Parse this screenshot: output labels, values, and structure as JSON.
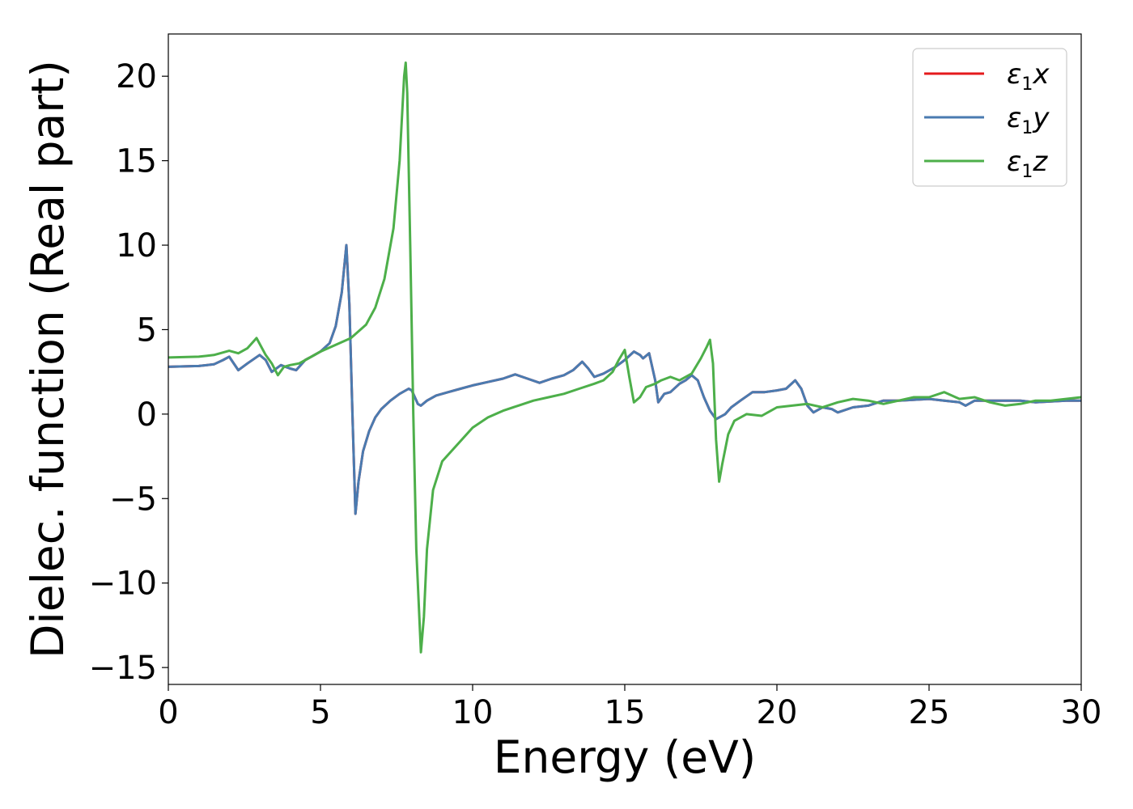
{
  "chart_data": {
    "type": "line",
    "title": "",
    "xlabel": "Energy (eV)",
    "ylabel": "Dielec. function (Real part)",
    "xlim": [
      0,
      30
    ],
    "ylim": [
      -16,
      22.5
    ],
    "xticks": [
      0,
      5,
      10,
      15,
      20,
      25,
      30
    ],
    "xtick_labels": [
      "0",
      "5",
      "10",
      "15",
      "20",
      "25",
      "30"
    ],
    "yticks": [
      -15,
      -10,
      -5,
      0,
      5,
      10,
      15,
      20
    ],
    "ytick_labels": [
      "−15",
      "−10",
      "−5",
      "0",
      "5",
      "10",
      "15",
      "20"
    ],
    "grid": false,
    "legend_position": "top-right",
    "series": [
      {
        "name": "ε₁x",
        "legend_symbol": "ε",
        "legend_sub": "1",
        "legend_suffix": "x",
        "color": "#e41a1c",
        "points": [
          [
            0,
            2.8
          ],
          [
            1,
            2.85
          ],
          [
            1.5,
            2.95
          ],
          [
            1.8,
            3.2
          ],
          [
            2.0,
            3.4
          ],
          [
            2.3,
            2.6
          ],
          [
            2.6,
            3.0
          ],
          [
            3.0,
            3.5
          ],
          [
            3.2,
            3.2
          ],
          [
            3.4,
            2.5
          ],
          [
            3.7,
            2.9
          ],
          [
            4.0,
            2.7
          ],
          [
            4.2,
            2.6
          ],
          [
            4.5,
            3.2
          ],
          [
            4.8,
            3.5
          ],
          [
            5.0,
            3.7
          ],
          [
            5.3,
            4.2
          ],
          [
            5.5,
            5.2
          ],
          [
            5.7,
            7.2
          ],
          [
            5.85,
            10.0
          ],
          [
            5.95,
            6.5
          ],
          [
            6.05,
            0.0
          ],
          [
            6.15,
            -5.9
          ],
          [
            6.25,
            -4.0
          ],
          [
            6.4,
            -2.2
          ],
          [
            6.6,
            -1.0
          ],
          [
            6.8,
            -0.2
          ],
          [
            7.0,
            0.3
          ],
          [
            7.3,
            0.8
          ],
          [
            7.6,
            1.2
          ],
          [
            7.9,
            1.5
          ],
          [
            8.0,
            1.4
          ],
          [
            8.2,
            0.6
          ],
          [
            8.3,
            0.5
          ],
          [
            8.5,
            0.8
          ],
          [
            8.8,
            1.1
          ],
          [
            9.2,
            1.3
          ],
          [
            9.6,
            1.5
          ],
          [
            10.0,
            1.7
          ],
          [
            10.5,
            1.9
          ],
          [
            11.0,
            2.1
          ],
          [
            11.4,
            2.35
          ],
          [
            11.8,
            2.1
          ],
          [
            12.2,
            1.85
          ],
          [
            12.6,
            2.1
          ],
          [
            13.0,
            2.3
          ],
          [
            13.3,
            2.6
          ],
          [
            13.6,
            3.1
          ],
          [
            13.8,
            2.7
          ],
          [
            14.0,
            2.2
          ],
          [
            14.3,
            2.4
          ],
          [
            14.7,
            2.8
          ],
          [
            15.0,
            3.2
          ],
          [
            15.3,
            3.7
          ],
          [
            15.5,
            3.5
          ],
          [
            15.6,
            3.3
          ],
          [
            15.8,
            3.6
          ],
          [
            16.0,
            2.0
          ],
          [
            16.1,
            0.7
          ],
          [
            16.3,
            1.2
          ],
          [
            16.5,
            1.3
          ],
          [
            16.8,
            1.8
          ],
          [
            17.0,
            2.0
          ],
          [
            17.2,
            2.3
          ],
          [
            17.4,
            2.0
          ],
          [
            17.6,
            1.0
          ],
          [
            17.8,
            0.2
          ],
          [
            18.0,
            -0.3
          ],
          [
            18.3,
            0.0
          ],
          [
            18.5,
            0.4
          ],
          [
            18.8,
            0.8
          ],
          [
            19.2,
            1.3
          ],
          [
            19.6,
            1.3
          ],
          [
            20.0,
            1.4
          ],
          [
            20.3,
            1.5
          ],
          [
            20.6,
            2.0
          ],
          [
            20.8,
            1.5
          ],
          [
            21.0,
            0.5
          ],
          [
            21.2,
            0.1
          ],
          [
            21.5,
            0.4
          ],
          [
            21.8,
            0.3
          ],
          [
            22.0,
            0.1
          ],
          [
            22.5,
            0.4
          ],
          [
            23.0,
            0.5
          ],
          [
            23.5,
            0.8
          ],
          [
            24.0,
            0.8
          ],
          [
            25.0,
            0.9
          ],
          [
            25.5,
            0.8
          ],
          [
            26.0,
            0.7
          ],
          [
            26.2,
            0.5
          ],
          [
            26.5,
            0.8
          ],
          [
            27.0,
            0.8
          ],
          [
            28.0,
            0.8
          ],
          [
            28.5,
            0.7
          ],
          [
            29.0,
            0.75
          ],
          [
            29.5,
            0.8
          ],
          [
            30,
            0.8
          ]
        ]
      },
      {
        "name": "ε₁y",
        "legend_symbol": "ε",
        "legend_sub": "1",
        "legend_suffix": "y",
        "color": "#4a7bb0",
        "points": [
          [
            0,
            2.8
          ],
          [
            1,
            2.85
          ],
          [
            1.5,
            2.95
          ],
          [
            1.8,
            3.2
          ],
          [
            2.0,
            3.4
          ],
          [
            2.3,
            2.6
          ],
          [
            2.6,
            3.0
          ],
          [
            3.0,
            3.5
          ],
          [
            3.2,
            3.2
          ],
          [
            3.4,
            2.5
          ],
          [
            3.7,
            2.9
          ],
          [
            4.0,
            2.7
          ],
          [
            4.2,
            2.6
          ],
          [
            4.5,
            3.2
          ],
          [
            4.8,
            3.5
          ],
          [
            5.0,
            3.7
          ],
          [
            5.3,
            4.2
          ],
          [
            5.5,
            5.2
          ],
          [
            5.7,
            7.2
          ],
          [
            5.85,
            10.0
          ],
          [
            5.95,
            6.5
          ],
          [
            6.05,
            0.0
          ],
          [
            6.15,
            -5.9
          ],
          [
            6.25,
            -4.0
          ],
          [
            6.4,
            -2.2
          ],
          [
            6.6,
            -1.0
          ],
          [
            6.8,
            -0.2
          ],
          [
            7.0,
            0.3
          ],
          [
            7.3,
            0.8
          ],
          [
            7.6,
            1.2
          ],
          [
            7.9,
            1.5
          ],
          [
            8.0,
            1.4
          ],
          [
            8.2,
            0.6
          ],
          [
            8.3,
            0.5
          ],
          [
            8.5,
            0.8
          ],
          [
            8.8,
            1.1
          ],
          [
            9.2,
            1.3
          ],
          [
            9.6,
            1.5
          ],
          [
            10.0,
            1.7
          ],
          [
            10.5,
            1.9
          ],
          [
            11.0,
            2.1
          ],
          [
            11.4,
            2.35
          ],
          [
            11.8,
            2.1
          ],
          [
            12.2,
            1.85
          ],
          [
            12.6,
            2.1
          ],
          [
            13.0,
            2.3
          ],
          [
            13.3,
            2.6
          ],
          [
            13.6,
            3.1
          ],
          [
            13.8,
            2.7
          ],
          [
            14.0,
            2.2
          ],
          [
            14.3,
            2.4
          ],
          [
            14.7,
            2.8
          ],
          [
            15.0,
            3.2
          ],
          [
            15.3,
            3.7
          ],
          [
            15.5,
            3.5
          ],
          [
            15.6,
            3.3
          ],
          [
            15.8,
            3.6
          ],
          [
            16.0,
            2.0
          ],
          [
            16.1,
            0.7
          ],
          [
            16.3,
            1.2
          ],
          [
            16.5,
            1.3
          ],
          [
            16.8,
            1.8
          ],
          [
            17.0,
            2.0
          ],
          [
            17.2,
            2.3
          ],
          [
            17.4,
            2.0
          ],
          [
            17.6,
            1.0
          ],
          [
            17.8,
            0.2
          ],
          [
            18.0,
            -0.3
          ],
          [
            18.3,
            0.0
          ],
          [
            18.5,
            0.4
          ],
          [
            18.8,
            0.8
          ],
          [
            19.2,
            1.3
          ],
          [
            19.6,
            1.3
          ],
          [
            20.0,
            1.4
          ],
          [
            20.3,
            1.5
          ],
          [
            20.6,
            2.0
          ],
          [
            20.8,
            1.5
          ],
          [
            21.0,
            0.5
          ],
          [
            21.2,
            0.1
          ],
          [
            21.5,
            0.4
          ],
          [
            21.8,
            0.3
          ],
          [
            22.0,
            0.1
          ],
          [
            22.5,
            0.4
          ],
          [
            23.0,
            0.5
          ],
          [
            23.5,
            0.8
          ],
          [
            24.0,
            0.8
          ],
          [
            25.0,
            0.9
          ],
          [
            25.5,
            0.8
          ],
          [
            26.0,
            0.7
          ],
          [
            26.2,
            0.5
          ],
          [
            26.5,
            0.8
          ],
          [
            27.0,
            0.8
          ],
          [
            28.0,
            0.8
          ],
          [
            28.5,
            0.7
          ],
          [
            29.0,
            0.75
          ],
          [
            29.5,
            0.8
          ],
          [
            30,
            0.8
          ]
        ]
      },
      {
        "name": "ε₁z",
        "legend_symbol": "ε",
        "legend_sub": "1",
        "legend_suffix": "z",
        "color": "#4daf4a",
        "points": [
          [
            0,
            3.35
          ],
          [
            1,
            3.4
          ],
          [
            1.5,
            3.5
          ],
          [
            2.0,
            3.75
          ],
          [
            2.3,
            3.6
          ],
          [
            2.6,
            3.9
          ],
          [
            2.9,
            4.5
          ],
          [
            3.2,
            3.5
          ],
          [
            3.4,
            3.0
          ],
          [
            3.6,
            2.3
          ],
          [
            3.8,
            2.8
          ],
          [
            4.0,
            2.9
          ],
          [
            4.3,
            3.0
          ],
          [
            4.6,
            3.3
          ],
          [
            5.0,
            3.7
          ],
          [
            5.5,
            4.1
          ],
          [
            6.0,
            4.5
          ],
          [
            6.5,
            5.3
          ],
          [
            6.8,
            6.3
          ],
          [
            7.1,
            8.0
          ],
          [
            7.4,
            11.0
          ],
          [
            7.6,
            15.0
          ],
          [
            7.75,
            20.0
          ],
          [
            7.8,
            20.8
          ],
          [
            7.85,
            19.0
          ],
          [
            7.95,
            10.0
          ],
          [
            8.05,
            0.0
          ],
          [
            8.15,
            -8.0
          ],
          [
            8.3,
            -14.1
          ],
          [
            8.4,
            -12.0
          ],
          [
            8.5,
            -8.0
          ],
          [
            8.7,
            -4.5
          ],
          [
            9.0,
            -2.8
          ],
          [
            9.3,
            -2.2
          ],
          [
            9.6,
            -1.6
          ],
          [
            10.0,
            -0.8
          ],
          [
            10.5,
            -0.2
          ],
          [
            11.0,
            0.2
          ],
          [
            11.5,
            0.5
          ],
          [
            12.0,
            0.8
          ],
          [
            12.5,
            1.0
          ],
          [
            13.0,
            1.2
          ],
          [
            13.5,
            1.5
          ],
          [
            14.0,
            1.8
          ],
          [
            14.3,
            2.0
          ],
          [
            14.6,
            2.5
          ],
          [
            14.8,
            3.2
          ],
          [
            15.0,
            3.8
          ],
          [
            15.15,
            2.2
          ],
          [
            15.3,
            0.7
          ],
          [
            15.5,
            1.0
          ],
          [
            15.7,
            1.6
          ],
          [
            16.0,
            1.8
          ],
          [
            16.2,
            2.0
          ],
          [
            16.5,
            2.2
          ],
          [
            16.8,
            2.0
          ],
          [
            17.2,
            2.4
          ],
          [
            17.5,
            3.3
          ],
          [
            17.7,
            4.0
          ],
          [
            17.8,
            4.4
          ],
          [
            17.9,
            3.0
          ],
          [
            18.0,
            -1.5
          ],
          [
            18.1,
            -4.0
          ],
          [
            18.2,
            -3.0
          ],
          [
            18.4,
            -1.2
          ],
          [
            18.6,
            -0.4
          ],
          [
            19.0,
            0.0
          ],
          [
            19.5,
            -0.1
          ],
          [
            20.0,
            0.4
          ],
          [
            20.5,
            0.5
          ],
          [
            21.0,
            0.6
          ],
          [
            21.5,
            0.4
          ],
          [
            22.0,
            0.7
          ],
          [
            22.5,
            0.9
          ],
          [
            23.0,
            0.8
          ],
          [
            23.5,
            0.6
          ],
          [
            24.0,
            0.8
          ],
          [
            24.5,
            1.0
          ],
          [
            25.0,
            1.0
          ],
          [
            25.5,
            1.3
          ],
          [
            26.0,
            0.9
          ],
          [
            26.5,
            1.0
          ],
          [
            27.0,
            0.7
          ],
          [
            27.5,
            0.5
          ],
          [
            28.0,
            0.6
          ],
          [
            28.5,
            0.8
          ],
          [
            29.0,
            0.8
          ],
          [
            29.5,
            0.9
          ],
          [
            30,
            1.0
          ]
        ]
      }
    ]
  }
}
